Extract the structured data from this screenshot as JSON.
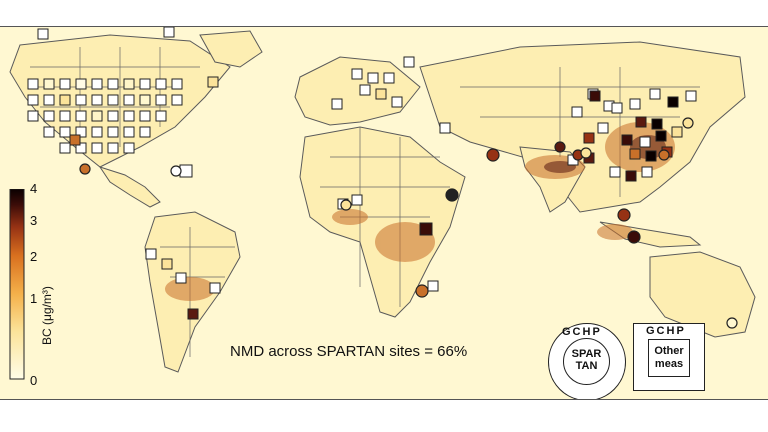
{
  "colorbar": {
    "title": "BC (μg/m³)",
    "ticks": [
      "4",
      "3",
      "2",
      "1",
      "0"
    ],
    "max": 4,
    "min": 0,
    "colors": [
      "#fffde8",
      "#fbe39a",
      "#f4b04a",
      "#d9701f",
      "#963214",
      "#3a0c08",
      "#0a0000"
    ]
  },
  "annotation": {
    "nmd_text": "NMD across SPARTAN sites = 66%"
  },
  "legend": {
    "circle": {
      "outer_label": "GCHP",
      "inner_label_1": "SPAR",
      "inner_label_2": "TAN"
    },
    "square": {
      "outer_label": "GCHP",
      "inner_label_1": "Other",
      "inner_label_2": "meas"
    }
  },
  "colors": {
    "ocean": "#fff8d2",
    "border": "#555555",
    "land": "#fdf0b8"
  }
}
